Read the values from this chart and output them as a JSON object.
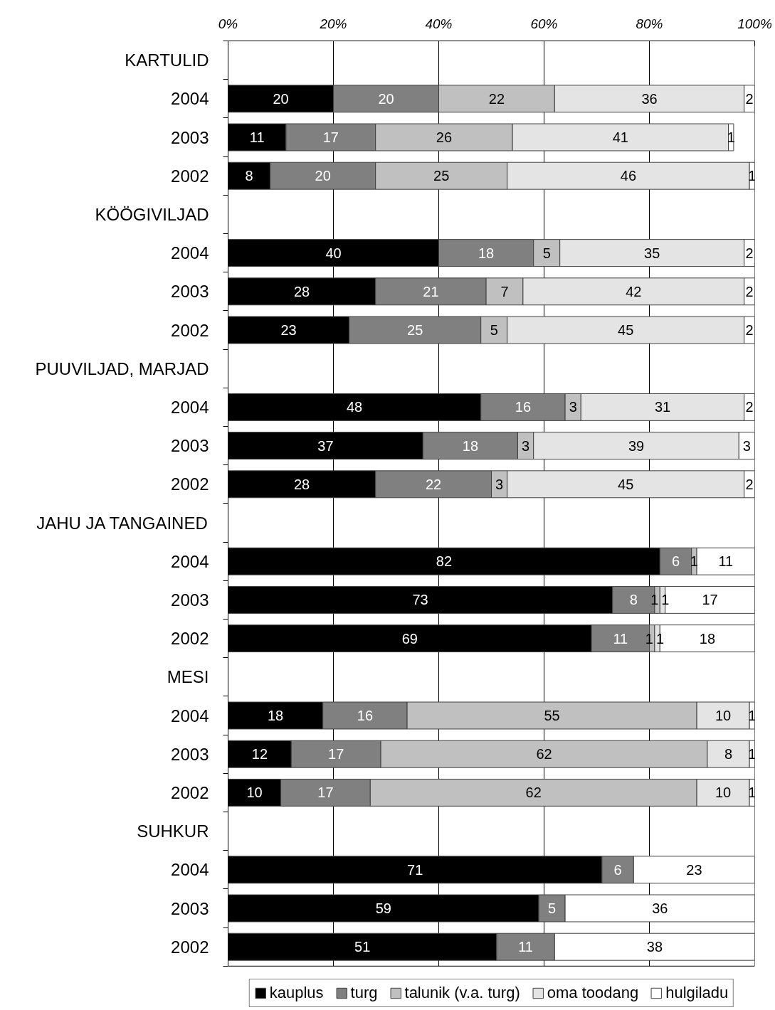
{
  "chart_data": {
    "type": "bar",
    "orientation": "horizontal",
    "stacked": true,
    "data_labels": true,
    "grid": "x",
    "legend": "bottom",
    "categories": [
      "KARTULID",
      "2004",
      "2003",
      "2002",
      "KÖÖGIVILJAD",
      "2004",
      "2003",
      "2002",
      "PUUVILJAD, MARJAD",
      "2004",
      "2003",
      "2002",
      "JAHU JA TANGAINED",
      "2004",
      "2003",
      "2002",
      "MESI",
      "2004",
      "2003",
      "2002",
      "SUHKUR",
      "2004",
      "2003",
      "2002"
    ],
    "xlim": [
      0,
      100
    ],
    "xticks": [
      {
        "value": 0,
        "label": "0%"
      },
      {
        "value": 20,
        "label": "20%"
      },
      {
        "value": 40,
        "label": "40%"
      },
      {
        "value": 60,
        "label": "60%"
      },
      {
        "value": 80,
        "label": "80%"
      },
      {
        "value": 100,
        "label": "100%"
      }
    ],
    "series": [
      {
        "name": "kauplus",
        "color": "#000000",
        "values": [
          null,
          20,
          11,
          8,
          null,
          40,
          28,
          23,
          null,
          48,
          37,
          28,
          null,
          82,
          73,
          69,
          null,
          18,
          12,
          10,
          null,
          71,
          59,
          51
        ]
      },
      {
        "name": "turg",
        "color": "#808080",
        "values": [
          null,
          20,
          17,
          20,
          null,
          18,
          21,
          25,
          null,
          16,
          18,
          22,
          null,
          6,
          8,
          11,
          null,
          16,
          17,
          17,
          null,
          6,
          5,
          11
        ]
      },
      {
        "name": "talunik (v.a. turg)",
        "color": "#c0c0c0",
        "values": [
          null,
          22,
          26,
          25,
          null,
          5,
          7,
          5,
          null,
          3,
          3,
          3,
          null,
          1,
          1,
          1,
          null,
          55,
          62,
          62,
          null,
          null,
          null,
          null
        ]
      },
      {
        "name": "oma toodang",
        "color": "#e4e4e4",
        "values": [
          null,
          36,
          41,
          46,
          null,
          35,
          42,
          45,
          null,
          31,
          39,
          45,
          null,
          null,
          1,
          1,
          null,
          10,
          8,
          10,
          null,
          null,
          null,
          null
        ]
      },
      {
        "name": "hulgiladu",
        "color": "#ffffff",
        "values": [
          null,
          2,
          1,
          1,
          null,
          2,
          2,
          2,
          null,
          2,
          3,
          2,
          null,
          11,
          17,
          18,
          null,
          1,
          1,
          1,
          null,
          23,
          36,
          38
        ]
      }
    ]
  }
}
